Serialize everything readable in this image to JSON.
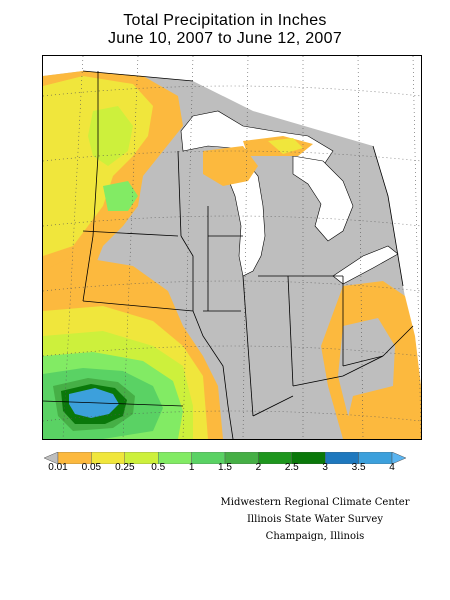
{
  "title": {
    "line1": "Total Precipitation in Inches",
    "line2": "June 10, 2007 to June 12, 2007"
  },
  "legend": {
    "thresholds": [
      "0.01",
      "0.05",
      "0.25",
      "0.5",
      "1",
      "1.5",
      "2",
      "2.5",
      "3",
      "3.5",
      "4"
    ],
    "colors": [
      "#bebebe",
      "#fcb93e",
      "#f0e63c",
      "#cdf03c",
      "#82eb64",
      "#5ad264",
      "#46af46",
      "#1e961e",
      "#0a780a",
      "#1e78be",
      "#3ca0dc",
      "#5ab4f0"
    ]
  },
  "credits": {
    "line1": "Midwestern Regional Climate Center",
    "line2": "Illinois State Water Survey",
    "line3": "Champaign, Illinois"
  },
  "colors": {
    "background": "#ffffff",
    "water": "#ffffff",
    "border": "#000000"
  }
}
